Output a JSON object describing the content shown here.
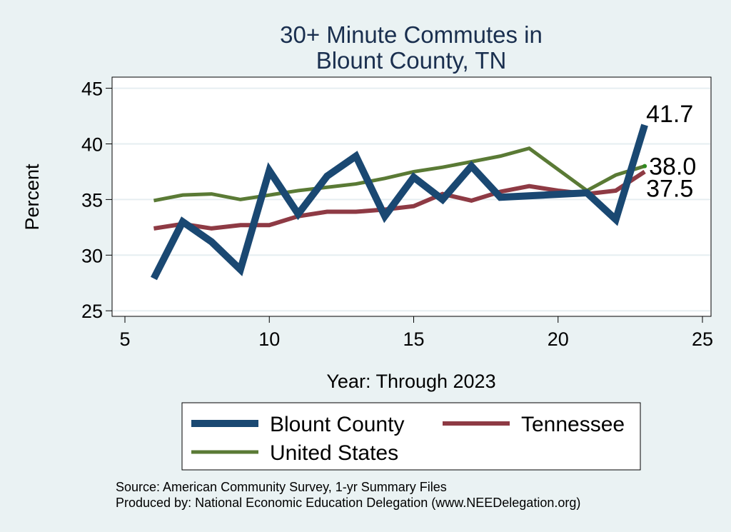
{
  "chart_data": {
    "type": "line",
    "title_lines": [
      "30+ Minute Commutes in",
      "Blount County, TN"
    ],
    "xlabel": "Year: Through 2023",
    "ylabel": "Percent",
    "xlim": [
      5,
      25
    ],
    "ylim": [
      24.5,
      46
    ],
    "xticks": [
      5,
      10,
      15,
      20,
      25
    ],
    "yticks": [
      25,
      30,
      35,
      40,
      45
    ],
    "grid": "horizontal",
    "legend_position": "bottom",
    "series": [
      {
        "name": "Blount County",
        "color": "#1a4872",
        "x": [
          6,
          7,
          8,
          9,
          10,
          11,
          12,
          13,
          14,
          15,
          16,
          17,
          18,
          21,
          22,
          23
        ],
        "values": [
          27.9,
          33.0,
          31.2,
          28.7,
          37.6,
          33.7,
          37.1,
          38.9,
          33.5,
          37.0,
          35.0,
          38.0,
          35.2,
          35.6,
          33.2,
          41.7
        ],
        "end_label": "41.7"
      },
      {
        "name": "Tennessee",
        "color": "#8e3a44",
        "x": [
          6,
          7,
          8,
          9,
          10,
          11,
          12,
          13,
          14,
          15,
          16,
          17,
          18,
          19,
          20,
          21,
          22,
          23
        ],
        "values": [
          32.4,
          32.8,
          32.4,
          32.7,
          32.7,
          33.5,
          33.9,
          33.9,
          34.1,
          34.4,
          35.5,
          34.9,
          35.7,
          36.2,
          35.8,
          35.5,
          35.8,
          37.5
        ],
        "end_label": "37.5"
      },
      {
        "name": "United States",
        "color": "#5a7a35",
        "x": [
          6,
          7,
          8,
          9,
          10,
          11,
          12,
          13,
          14,
          15,
          16,
          17,
          18,
          19,
          21,
          22,
          23
        ],
        "values": [
          34.9,
          35.4,
          35.5,
          35.0,
          35.4,
          35.8,
          36.1,
          36.4,
          36.9,
          37.5,
          37.9,
          38.4,
          38.9,
          39.6,
          35.8,
          37.2,
          38.0
        ],
        "end_label": "38.0"
      }
    ],
    "source_lines": [
      "Source: American Community Survey, 1-yr Summary Files",
      "Produced by: National Economic Education Delegation (www.NEEDelegation.org)"
    ]
  }
}
